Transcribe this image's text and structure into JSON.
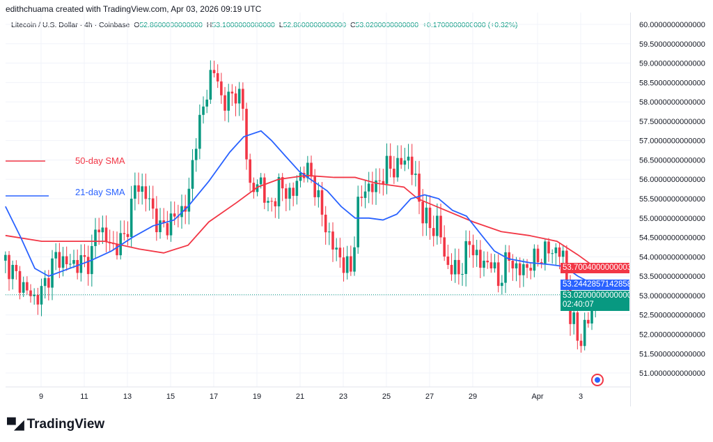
{
  "header": {
    "credit": "edithchuama created with TradingView.com, Apr 03, 2026 09:19 UTC",
    "symbol": "Litecoin / U.S. Dollar · 4h · Coinbase",
    "open_label": "O",
    "open": "52.8600000000000",
    "high_label": "H",
    "high": "53.1000000000000",
    "low_label": "L",
    "low": "52.8600000000000",
    "close_label": "C",
    "close": "53.0200000000000",
    "change": "+0.1700000000000 (+0.32%)"
  },
  "price_tags": {
    "sma50": "53.7004000000003",
    "sma21": "53.2442857142858",
    "last": "53.0200000000000",
    "countdown": "02:40:07"
  },
  "legend": {
    "sma50": "50-day SMA",
    "sma21": "21-day SMA"
  },
  "colors": {
    "up": "#089981",
    "down": "#f23645",
    "sma50": "#f23645",
    "sma21": "#2962ff",
    "last": "#089981"
  },
  "footer": {
    "brand": "TradingView"
  },
  "chart_data": {
    "type": "candlestick",
    "yaxis": {
      "range": [
        50.8,
        60.2
      ],
      "ticks": [
        "60.0000000000000",
        "59.5000000000000",
        "59.0000000000000",
        "58.5000000000000",
        "58.0000000000000",
        "57.5000000000000",
        "57.0000000000000",
        "56.5000000000000",
        "56.0000000000000",
        "55.5000000000000",
        "55.0000000000000",
        "54.5000000000000",
        "54.0000000000000",
        "53.5000000000000",
        "53.0000000000000",
        "52.5000000000000",
        "52.0000000000000",
        "51.5000000000000",
        "51.0000000000000"
      ],
      "tick_values": [
        60,
        59.5,
        59,
        58.5,
        58,
        57.5,
        57,
        56.5,
        56,
        55.5,
        55,
        54.5,
        54,
        53.5,
        53,
        52.5,
        52,
        51.5,
        51
      ]
    },
    "xaxis": {
      "ticks": [
        "9",
        "11",
        "13",
        "15",
        "17",
        "19",
        "21",
        "23",
        "25",
        "27",
        "29",
        "Apr",
        "3"
      ],
      "tick_day_mar": [
        9,
        11,
        13,
        15,
        17,
        19,
        21,
        23,
        25,
        27,
        29,
        32,
        34
      ]
    },
    "interval": "4h",
    "price_path_day_mar": [
      [
        7.35,
        53.9
      ],
      [
        8.06,
        53.3
      ],
      [
        8.71,
        52.9
      ],
      [
        9.03,
        53.1
      ],
      [
        9.68,
        54.0
      ],
      [
        10.32,
        53.8
      ],
      [
        11.29,
        53.9
      ],
      [
        11.61,
        54.9
      ],
      [
        12.26,
        54.2
      ],
      [
        12.9,
        54.5
      ],
      [
        13.39,
        55.9
      ],
      [
        13.87,
        55.6
      ],
      [
        14.52,
        54.7
      ],
      [
        15.16,
        55.0
      ],
      [
        15.81,
        55.4
      ],
      [
        16.13,
        57.0
      ],
      [
        16.45,
        57.6
      ],
      [
        16.77,
        58.6
      ],
      [
        17.1,
        58.8
      ],
      [
        17.42,
        57.9
      ],
      [
        18.06,
        58.3
      ],
      [
        18.39,
        57.7
      ],
      [
        18.55,
        56.5
      ],
      [
        18.71,
        55.6
      ],
      [
        19.19,
        56.0
      ],
      [
        19.52,
        55.2
      ],
      [
        20.0,
        55.8
      ],
      [
        20.65,
        55.6
      ],
      [
        21.13,
        56.3
      ],
      [
        21.61,
        56.0
      ],
      [
        22.1,
        54.9
      ],
      [
        22.58,
        54.2
      ],
      [
        23.06,
        53.8
      ],
      [
        23.39,
        53.6
      ],
      [
        23.61,
        55.2
      ],
      [
        24.03,
        55.8
      ],
      [
        24.52,
        55.8
      ],
      [
        25.0,
        56.3
      ],
      [
        25.48,
        56.3
      ],
      [
        25.97,
        56.6
      ],
      [
        26.29,
        56.1
      ],
      [
        26.61,
        55.2
      ],
      [
        27.1,
        54.7
      ],
      [
        27.42,
        54.9
      ],
      [
        27.74,
        53.8
      ],
      [
        28.39,
        53.6
      ],
      [
        28.87,
        54.4
      ],
      [
        29.35,
        53.8
      ],
      [
        29.84,
        53.9
      ],
      [
        30.16,
        53.3
      ],
      [
        30.65,
        54.0
      ],
      [
        31.13,
        53.6
      ],
      [
        31.61,
        53.8
      ],
      [
        32.1,
        54.0
      ],
      [
        32.58,
        54.2
      ],
      [
        33.06,
        54.1
      ],
      [
        33.29,
        53.9
      ],
      [
        33.48,
        52.5
      ],
      [
        33.71,
        52.2
      ],
      [
        33.94,
        51.8
      ],
      [
        34.26,
        52.2
      ],
      [
        34.52,
        52.7
      ],
      [
        34.74,
        53.02
      ]
    ],
    "series": [
      {
        "name": "50-day SMA",
        "points": [
          [
            7.35,
            54.55
          ],
          [
            9.03,
            54.4
          ],
          [
            11.94,
            54.4
          ],
          [
            13.55,
            54.2
          ],
          [
            14.68,
            54.1
          ],
          [
            15.81,
            54.3
          ],
          [
            16.77,
            54.9
          ],
          [
            18.06,
            55.4
          ],
          [
            19.03,
            55.8
          ],
          [
            20.0,
            56.0
          ],
          [
            21.29,
            56.1
          ],
          [
            22.58,
            56.05
          ],
          [
            23.55,
            56.05
          ],
          [
            24.52,
            55.9
          ],
          [
            25.81,
            55.8
          ],
          [
            26.45,
            55.5
          ],
          [
            27.74,
            55.2
          ],
          [
            29.03,
            54.9
          ],
          [
            30.32,
            54.65
          ],
          [
            31.61,
            54.55
          ],
          [
            32.9,
            54.4
          ],
          [
            33.87,
            54.05
          ],
          [
            34.74,
            53.7
          ]
        ]
      },
      {
        "name": "21-day SMA",
        "points": [
          [
            7.35,
            55.3
          ],
          [
            8.06,
            54.5
          ],
          [
            8.71,
            53.7
          ],
          [
            9.35,
            53.5
          ],
          [
            10.32,
            53.7
          ],
          [
            11.29,
            53.9
          ],
          [
            12.26,
            54.15
          ],
          [
            13.23,
            54.5
          ],
          [
            14.19,
            54.8
          ],
          [
            15.16,
            54.95
          ],
          [
            15.81,
            55.3
          ],
          [
            16.77,
            55.95
          ],
          [
            17.74,
            56.7
          ],
          [
            18.39,
            57.1
          ],
          [
            19.19,
            57.25
          ],
          [
            19.68,
            57.0
          ],
          [
            20.32,
            56.6
          ],
          [
            20.97,
            56.2
          ],
          [
            21.61,
            55.95
          ],
          [
            22.26,
            55.7
          ],
          [
            22.9,
            55.3
          ],
          [
            23.55,
            55.0
          ],
          [
            24.19,
            55.0
          ],
          [
            24.84,
            54.95
          ],
          [
            25.48,
            55.1
          ],
          [
            26.13,
            55.5
          ],
          [
            26.77,
            55.6
          ],
          [
            27.42,
            55.5
          ],
          [
            28.06,
            55.2
          ],
          [
            28.71,
            55.05
          ],
          [
            29.35,
            54.6
          ],
          [
            30.0,
            54.15
          ],
          [
            30.65,
            53.95
          ],
          [
            31.61,
            53.85
          ],
          [
            32.58,
            53.8
          ],
          [
            33.23,
            53.75
          ],
          [
            33.87,
            53.5
          ],
          [
            34.74,
            53.25
          ]
        ]
      }
    ]
  }
}
